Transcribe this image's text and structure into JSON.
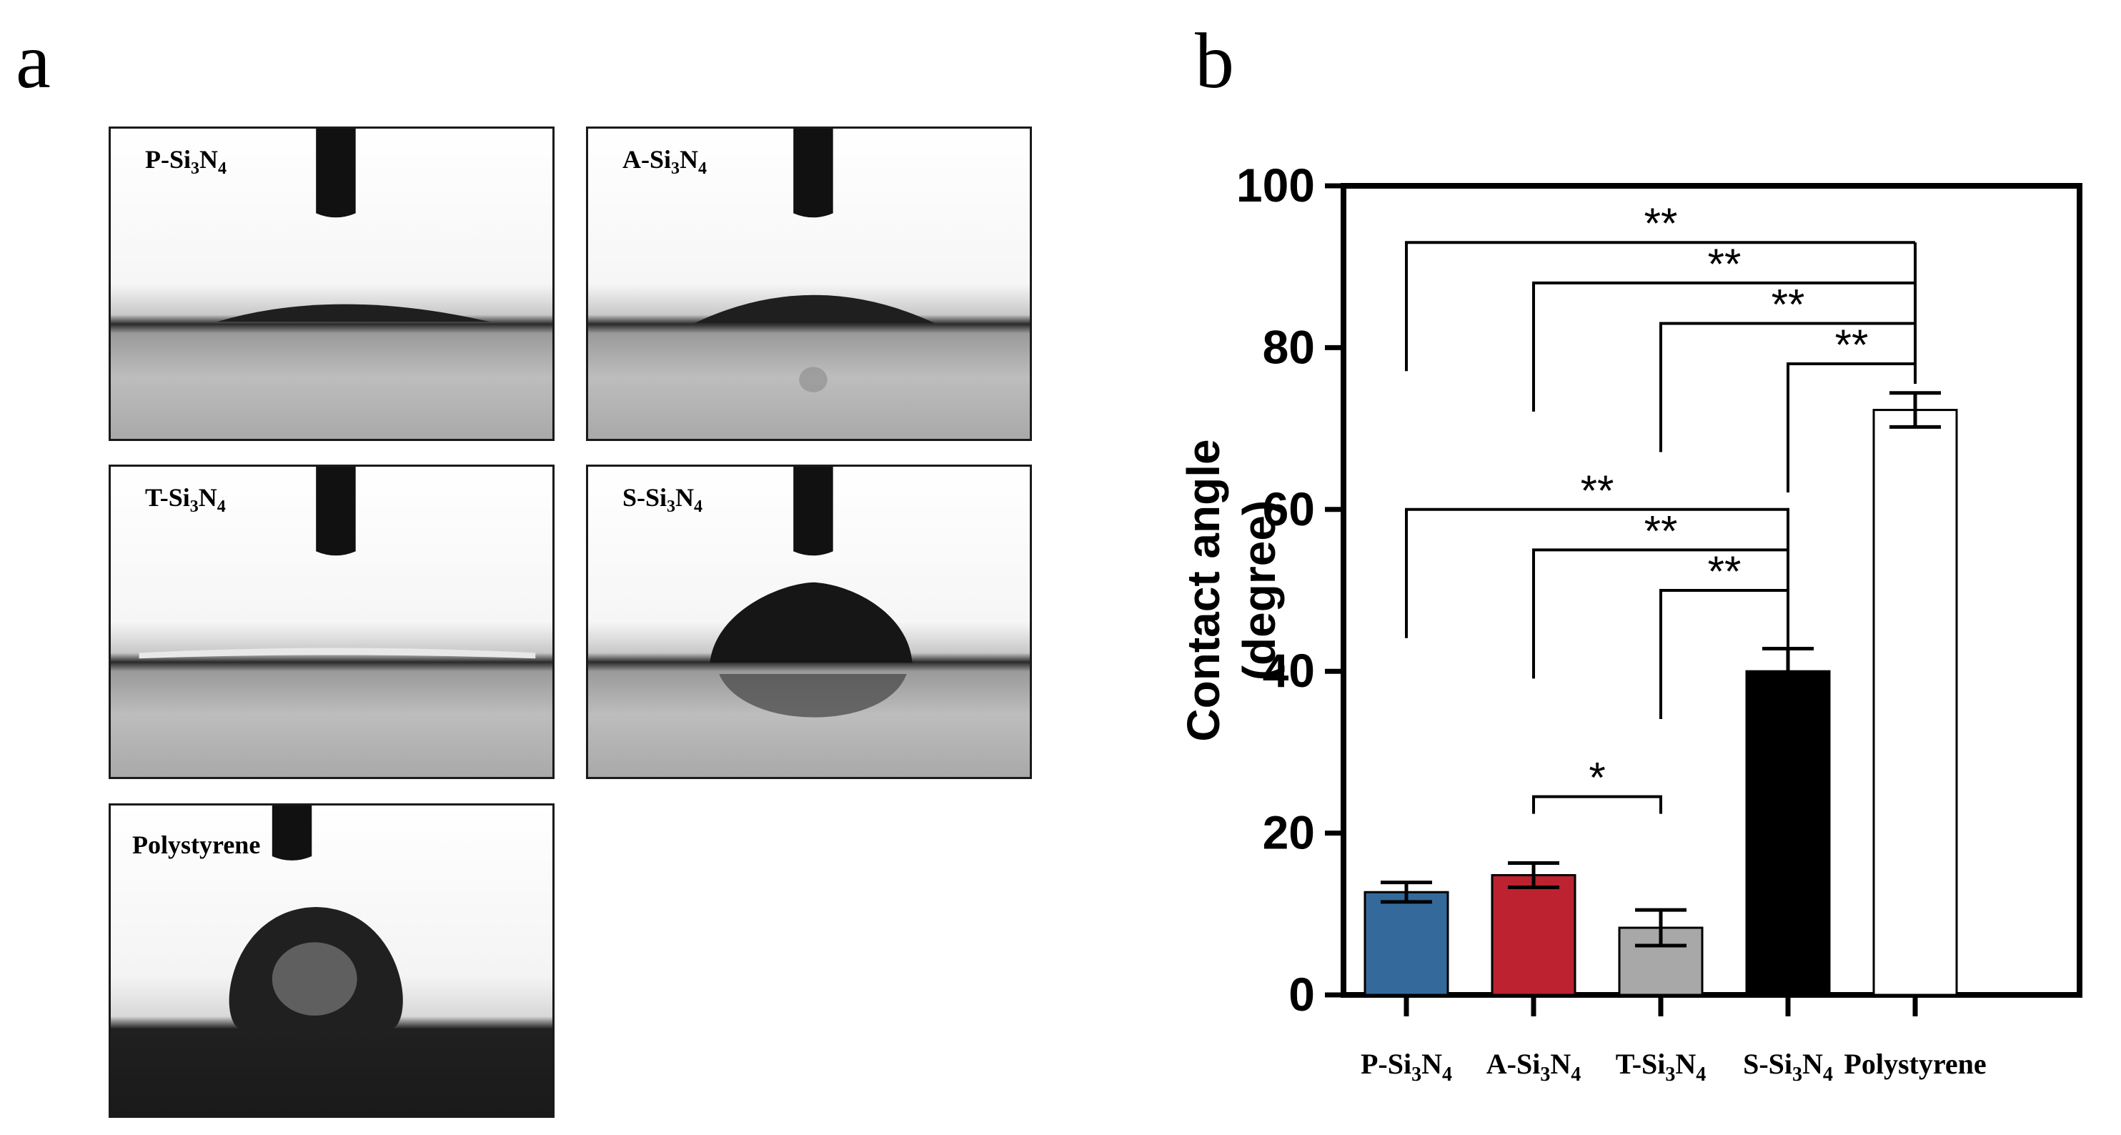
{
  "panels": {
    "a": {
      "letter": "a"
    },
    "b": {
      "letter": "b"
    }
  },
  "photos": [
    {
      "id": "p",
      "label_main": "P-Si",
      "sub1": "3",
      "mid": "N",
      "sub2": "4",
      "drop": "flat-low"
    },
    {
      "id": "a",
      "label_main": "A-Si",
      "sub1": "3",
      "mid": "N",
      "sub2": "4",
      "drop": "medium-low"
    },
    {
      "id": "t",
      "label_main": "T-Si",
      "sub1": "3",
      "mid": "N",
      "sub2": "4",
      "drop": "film"
    },
    {
      "id": "s",
      "label_main": "S-Si",
      "sub1": "3",
      "mid": "N",
      "sub2": "4",
      "drop": "dome"
    },
    {
      "id": "ps",
      "label_main": "Polystyrene",
      "sub1": "",
      "mid": "",
      "sub2": "",
      "drop": "bead"
    }
  ],
  "chart_data": {
    "type": "bar",
    "ylabel_line1": "Contact angle",
    "ylabel_line2": "(degree)",
    "ylim": [
      0,
      100
    ],
    "yticks": [
      0,
      20,
      40,
      60,
      80,
      100
    ],
    "categories": [
      {
        "main": "P-Si",
        "sub1": "3",
        "mid": "N",
        "sub2": "4"
      },
      {
        "main": "A-Si",
        "sub1": "3",
        "mid": "N",
        "sub2": "4"
      },
      {
        "main": "T-Si",
        "sub1": "3",
        "mid": "N",
        "sub2": "4"
      },
      {
        "main": "S-Si",
        "sub1": "3",
        "mid": "N",
        "sub2": "4"
      },
      {
        "main": "Polystyrene",
        "sub1": "",
        "mid": "",
        "sub2": ""
      }
    ],
    "values": [
      12.7,
      14.8,
      8.3,
      40.0,
      72.3
    ],
    "errors": [
      1.2,
      1.5,
      2.2,
      2.8,
      2.1
    ],
    "colors": [
      "#336a9b",
      "#bd2230",
      "#a8a8a8",
      "#000000",
      "#ffffff"
    ],
    "significance": [
      {
        "from": 0,
        "to": 4,
        "y": 93,
        "label": "**"
      },
      {
        "from": 1,
        "to": 4,
        "y": 88,
        "label": "**"
      },
      {
        "from": 2,
        "to": 4,
        "y": 83,
        "label": "**"
      },
      {
        "from": 3,
        "to": 4,
        "y": 78,
        "label": "**"
      },
      {
        "from": 0,
        "to": 3,
        "y": 60,
        "label": "**"
      },
      {
        "from": 1,
        "to": 3,
        "y": 55,
        "label": "**"
      },
      {
        "from": 2,
        "to": 3,
        "y": 50,
        "label": "**"
      },
      {
        "from": 1,
        "to": 2,
        "y": 24.5,
        "label": "*"
      }
    ]
  }
}
